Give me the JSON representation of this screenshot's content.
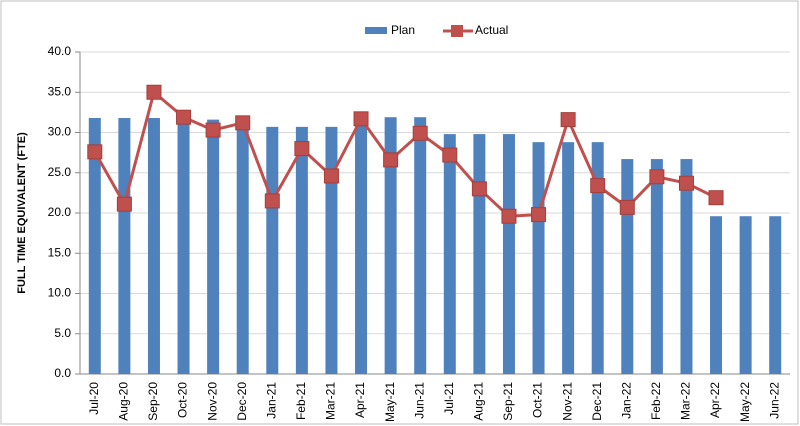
{
  "chart_data": {
    "type": "bar-line",
    "y_axis_label": "FULL TIME EQUIVALENT (FTE)",
    "categories": [
      "Jul-20",
      "Aug-20",
      "Sep-20",
      "Oct-20",
      "Nov-20",
      "Dec-20",
      "Jan-21",
      "Feb-21",
      "Mar-21",
      "Apr-21",
      "May-21",
      "Jun-21",
      "Jul-21",
      "Aug-21",
      "Sep-21",
      "Oct-21",
      "Nov-21",
      "Dec-21",
      "Jan-22",
      "Feb-22",
      "Mar-22",
      "Apr-22",
      "May-22",
      "Jun-22"
    ],
    "series": [
      {
        "name": "Plan",
        "type": "bar",
        "color": "#4f81bd",
        "values": [
          31.8,
          31.8,
          31.8,
          31.8,
          31.6,
          31.1,
          30.7,
          30.7,
          30.7,
          31.5,
          31.9,
          31.9,
          29.8,
          29.8,
          29.8,
          28.8,
          28.8,
          28.8,
          26.7,
          26.7,
          26.7,
          19.6,
          19.6,
          19.6
        ]
      },
      {
        "name": "Actual",
        "type": "line",
        "color": "#c0504d",
        "values": [
          27.6,
          21.1,
          35.0,
          31.9,
          30.3,
          31.2,
          21.5,
          28.0,
          24.6,
          31.7,
          26.6,
          29.9,
          27.2,
          23.0,
          19.6,
          19.8,
          31.6,
          23.4,
          20.7,
          24.5,
          23.7,
          21.9,
          null,
          null
        ]
      }
    ],
    "ylim": [
      0,
      40
    ],
    "yticks": [
      {
        "value": 0,
        "label": "0.0"
      },
      {
        "value": 5,
        "label": "5.0"
      },
      {
        "value": 10,
        "label": "10.0"
      },
      {
        "value": 15,
        "label": "15.0"
      },
      {
        "value": 20,
        "label": "20.0"
      },
      {
        "value": 25,
        "label": "25.0"
      },
      {
        "value": 30,
        "label": "30.0"
      },
      {
        "value": 35,
        "label": "35.0"
      },
      {
        "value": 40,
        "label": "40.0"
      }
    ],
    "grid": true,
    "legend": "top"
  }
}
